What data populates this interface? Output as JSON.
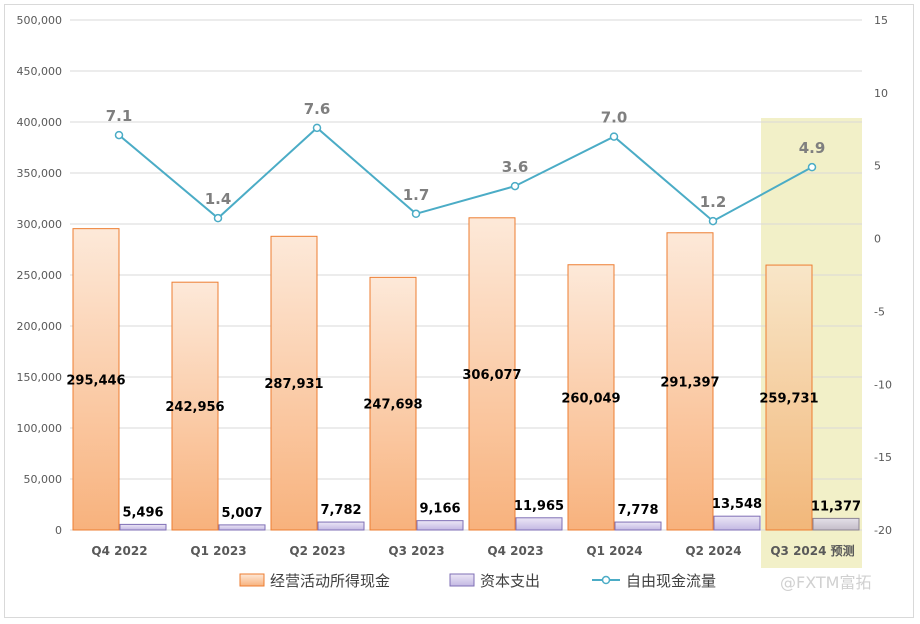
{
  "chart_data": {
    "type": "bar",
    "categories": [
      "Q4 2022",
      "Q1 2023",
      "Q2 2023",
      "Q3 2023",
      "Q4 2023",
      "Q1 2024",
      "Q2 2024",
      "Q3 2024 预测"
    ],
    "series": [
      {
        "name": "经营活动所得现金",
        "type": "bar",
        "axis": "left",
        "color": "#f4b183",
        "values": [
          295446,
          242956,
          287931,
          247698,
          306077,
          260049,
          291397,
          259731
        ],
        "labels": [
          "295,446",
          "242,956",
          "287,931",
          "247,698",
          "306,077",
          "260,049",
          "291,397",
          "259,731"
        ]
      },
      {
        "name": "资本支出",
        "type": "bar",
        "axis": "left",
        "color": "#b4a7d6",
        "values": [
          5496,
          5007,
          7782,
          9166,
          11965,
          7778,
          13548,
          11377
        ],
        "labels": [
          "5,496",
          "5,007",
          "7,782",
          "9,166",
          "11,965",
          "7,778",
          "13,548",
          "11,377"
        ]
      },
      {
        "name": "自由现金流量",
        "type": "line",
        "axis": "right",
        "color": "#4bacc6",
        "values": [
          7.1,
          1.4,
          7.6,
          1.7,
          3.6,
          7.0,
          1.2,
          4.9
        ],
        "labels": [
          "7.1",
          "1.4",
          "7.6",
          "1.7",
          "3.6",
          "7.0",
          "1.2",
          "4.9"
        ]
      }
    ],
    "y_left": {
      "ylim": [
        0,
        500000
      ],
      "ticks": [
        "0",
        "50,000",
        "100,000",
        "150,000",
        "200,000",
        "250,000",
        "300,000",
        "350,000",
        "400,000",
        "450,000",
        "500,000"
      ]
    },
    "y_right": {
      "ylim": [
        -20,
        15
      ],
      "ticks": [
        "-20",
        "-15",
        "-10",
        "-5",
        "0",
        "5",
        "10",
        "15"
      ]
    },
    "highlight_category": "Q3 2024 预测",
    "highlight_color": "#f2f0c8",
    "grid": true,
    "legend_position": "bottom"
  },
  "watermark": "@FXTM富拓"
}
